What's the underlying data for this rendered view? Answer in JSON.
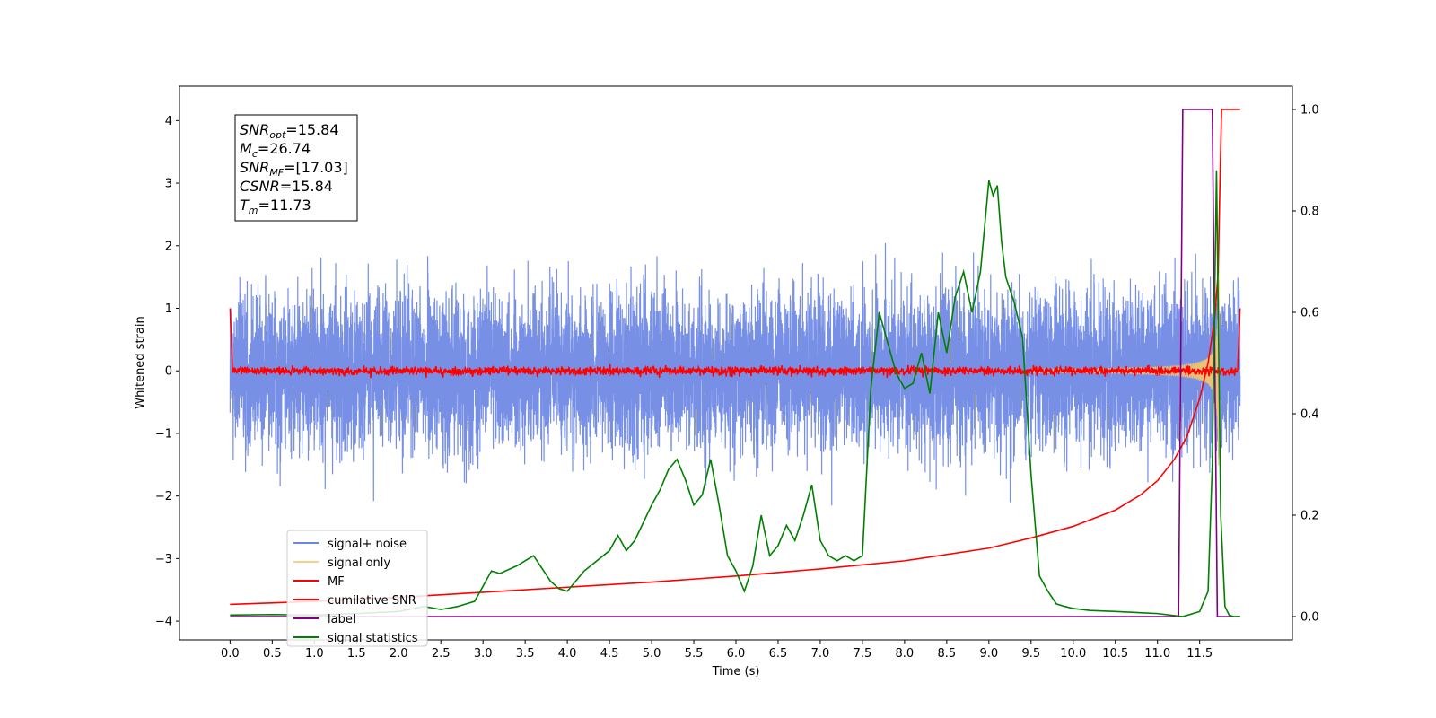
{
  "chart_data": {
    "type": "line",
    "xlabel": "Time (s)",
    "ylabel": "Whitened strain",
    "xlim": [
      -0.6,
      12.6
    ],
    "ylim_left": [
      -4.3,
      4.55
    ],
    "ylim_right": [
      -0.046,
      1.046
    ],
    "x_ticks": [
      0.0,
      0.5,
      1.0,
      1.5,
      2.0,
      2.5,
      3.0,
      3.5,
      4.0,
      4.5,
      5.0,
      5.5,
      6.0,
      6.5,
      7.0,
      7.5,
      8.0,
      8.5,
      9.0,
      9.5,
      10.0,
      10.5,
      11.0,
      11.5
    ],
    "x_tick_labels": [
      "0.0",
      "0.5",
      "1.0",
      "1.5",
      "2.0",
      "2.5",
      "3.0",
      "3.5",
      "4.0",
      "4.5",
      "5.0",
      "5.5",
      "6.0",
      "6.5",
      "7.0",
      "7.5",
      "8.0",
      "8.5",
      "9.0",
      "9.5",
      "10.0",
      "10.5",
      "11.0",
      "11.5"
    ],
    "y_left_ticks": [
      -4,
      -3,
      -2,
      -1,
      0,
      1,
      2,
      3,
      4
    ],
    "y_left_tick_labels": [
      "−4",
      "−3",
      "−2",
      "−1",
      "0",
      "1",
      "2",
      "3",
      "4"
    ],
    "y_right_ticks": [
      0.0,
      0.2,
      0.4,
      0.6,
      0.8,
      1.0
    ],
    "y_right_tick_labels": [
      "0.0",
      "0.2",
      "0.4",
      "0.6",
      "0.8",
      "1.0"
    ],
    "grid": false,
    "legend_position": "bottom-left",
    "noise_amplitude": 1.0,
    "series": [
      {
        "name": "signal+ noise",
        "color": "#6b87e4",
        "axis": "left",
        "style": "noise"
      },
      {
        "name": "signal only",
        "color": "#f5c66b",
        "axis": "left",
        "style": "chirp",
        "t_merge": 11.73
      },
      {
        "name": "MF",
        "color": "#ff0000",
        "axis": "left",
        "style": "mf",
        "end_value": 1.0
      },
      {
        "name": "cumilative SNR",
        "color": "#ff0000",
        "axis": "right",
        "x": [
          0.0,
          1.0,
          2.0,
          3.0,
          4.0,
          5.0,
          6.0,
          7.0,
          8.0,
          9.0,
          9.5,
          10.0,
          10.5,
          10.8,
          11.0,
          11.2,
          11.35,
          11.5,
          11.6,
          11.68,
          11.72,
          11.74,
          11.76,
          11.8,
          11.9,
          11.98
        ],
        "y": [
          0.024,
          0.03,
          0.038,
          0.048,
          0.058,
          0.068,
          0.08,
          0.094,
          0.11,
          0.135,
          0.155,
          0.178,
          0.21,
          0.24,
          0.268,
          0.31,
          0.355,
          0.43,
          0.5,
          0.59,
          0.68,
          0.85,
          1.0,
          1.0,
          1.0,
          1.0
        ]
      },
      {
        "name": "label",
        "color": "#800080",
        "axis": "right",
        "x": [
          0.0,
          11.25,
          11.3,
          11.65,
          11.71,
          11.98
        ],
        "y": [
          0.0,
          0.0,
          1.0,
          1.0,
          0.0,
          0.0
        ]
      },
      {
        "name": "signal statistics",
        "color": "#008000",
        "axis": "right",
        "x": [
          0.0,
          0.5,
          1.0,
          1.5,
          2.0,
          2.3,
          2.5,
          2.7,
          2.9,
          3.0,
          3.1,
          3.2,
          3.4,
          3.5,
          3.6,
          3.8,
          3.9,
          4.0,
          4.2,
          4.5,
          4.6,
          4.7,
          4.8,
          5.0,
          5.1,
          5.2,
          5.3,
          5.4,
          5.5,
          5.6,
          5.7,
          5.8,
          5.9,
          6.0,
          6.1,
          6.2,
          6.3,
          6.4,
          6.5,
          6.6,
          6.7,
          6.8,
          6.9,
          7.0,
          7.1,
          7.2,
          7.3,
          7.4,
          7.5,
          7.6,
          7.7,
          7.8,
          7.9,
          8.0,
          8.1,
          8.2,
          8.3,
          8.4,
          8.5,
          8.6,
          8.7,
          8.8,
          8.9,
          9.0,
          9.05,
          9.1,
          9.15,
          9.2,
          9.3,
          9.4,
          9.5,
          9.6,
          9.7,
          9.8,
          9.9,
          10.0,
          10.2,
          10.5,
          11.0,
          11.3,
          11.5,
          11.6,
          11.65,
          11.7,
          11.75,
          11.8,
          11.85,
          11.9,
          11.98
        ],
        "y": [
          0.003,
          0.004,
          0.003,
          0.006,
          0.01,
          0.02,
          0.014,
          0.02,
          0.03,
          0.06,
          0.09,
          0.085,
          0.1,
          0.11,
          0.12,
          0.07,
          0.055,
          0.05,
          0.09,
          0.13,
          0.16,
          0.13,
          0.15,
          0.22,
          0.25,
          0.29,
          0.31,
          0.27,
          0.22,
          0.24,
          0.31,
          0.22,
          0.12,
          0.09,
          0.05,
          0.1,
          0.2,
          0.12,
          0.14,
          0.18,
          0.15,
          0.2,
          0.26,
          0.15,
          0.12,
          0.11,
          0.12,
          0.11,
          0.12,
          0.45,
          0.6,
          0.54,
          0.48,
          0.45,
          0.46,
          0.52,
          0.44,
          0.6,
          0.52,
          0.63,
          0.68,
          0.6,
          0.68,
          0.86,
          0.83,
          0.85,
          0.74,
          0.67,
          0.62,
          0.55,
          0.28,
          0.08,
          0.05,
          0.025,
          0.02,
          0.016,
          0.012,
          0.01,
          0.006,
          0.0,
          0.01,
          0.05,
          0.3,
          0.88,
          0.2,
          0.02,
          0.003,
          0.0,
          0.0
        ]
      }
    ],
    "annotations": [
      {
        "symbol": "SNR",
        "sub": "opt",
        "value": "=15.84"
      },
      {
        "symbol": "M",
        "sub": "c",
        "value": "=26.74"
      },
      {
        "symbol": "SNR",
        "sub": "MF",
        "value": "=[17.03]"
      },
      {
        "symbol": "CSNR",
        "sub": "",
        "value": "=15.84"
      },
      {
        "symbol": "T",
        "sub": "m",
        "value": "=11.73"
      }
    ]
  }
}
